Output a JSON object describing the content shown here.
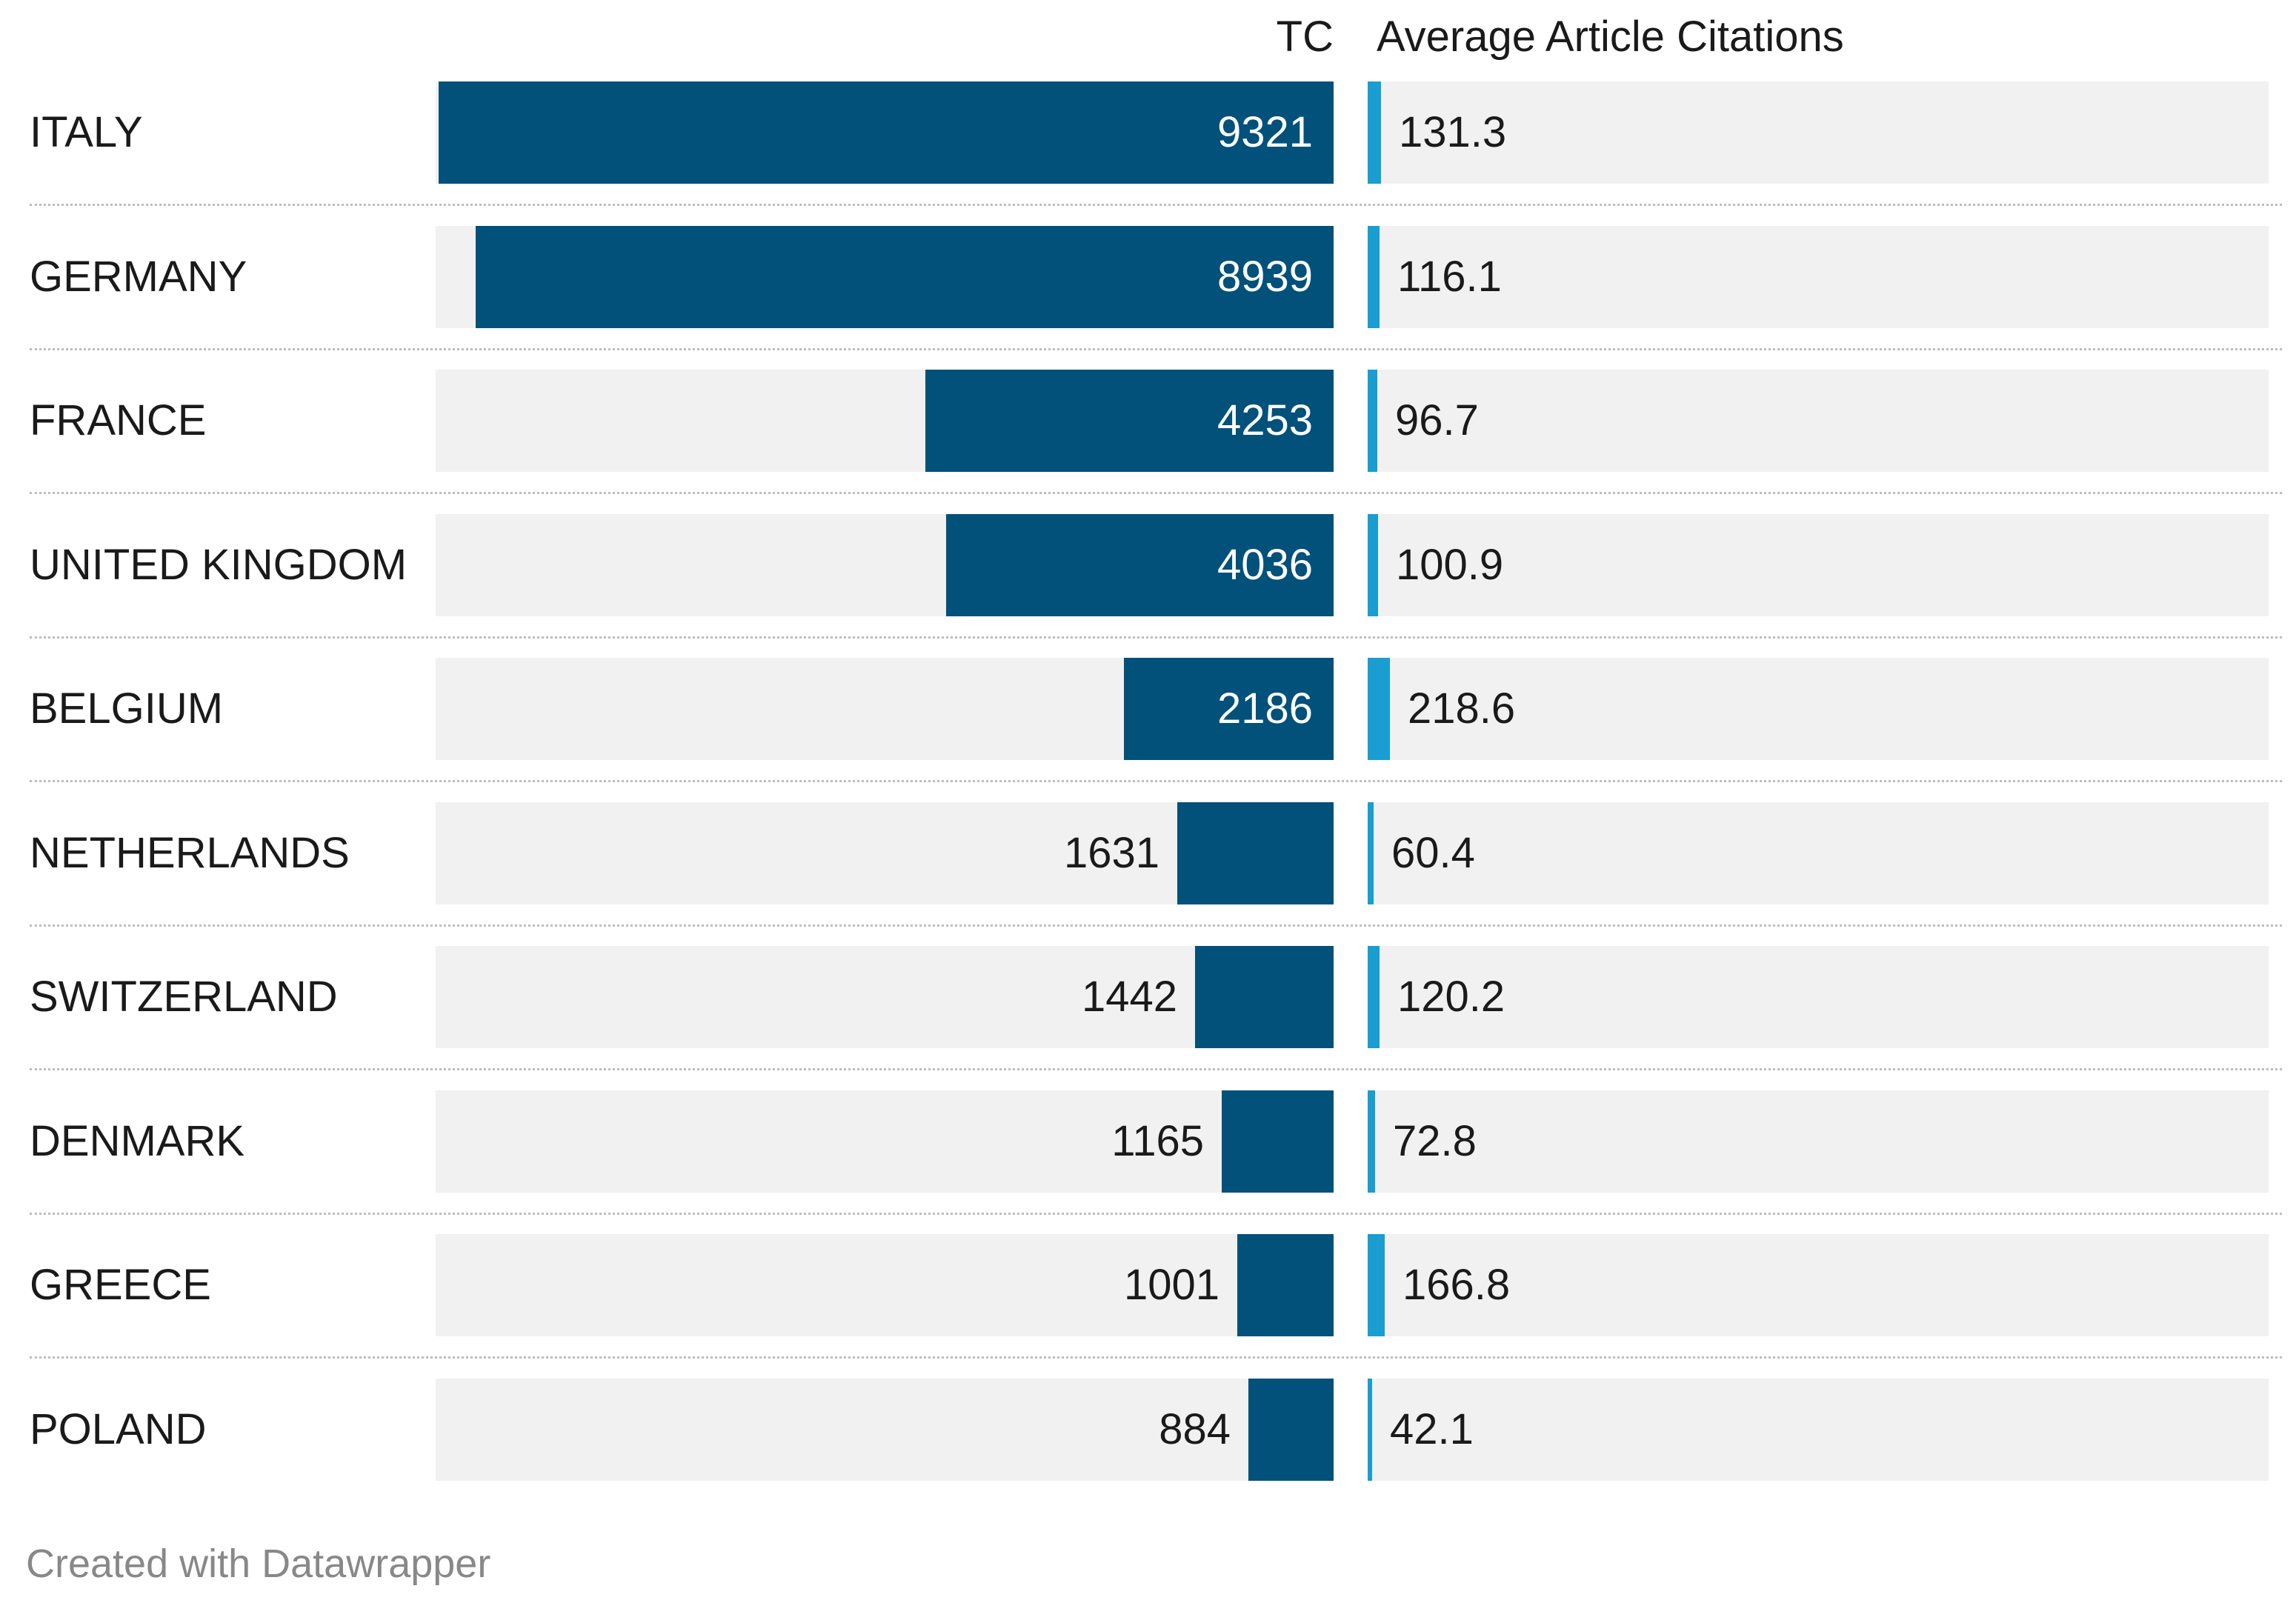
{
  "chart_data": {
    "type": "bar",
    "title": "",
    "columns": [
      "TC",
      "Average Article Citations"
    ],
    "categories": [
      "ITALY",
      "GERMANY",
      "FRANCE",
      "UNITED KINGDOM",
      "BELGIUM",
      "NETHERLANDS",
      "SWITZERLAND",
      "DENMARK",
      "GREECE",
      "POLAND"
    ],
    "series": [
      {
        "name": "TC",
        "values": [
          9321,
          8939,
          4253,
          4036,
          2186,
          1631,
          1442,
          1165,
          1001,
          884
        ],
        "color": "#02517a"
      },
      {
        "name": "Average Article Citations",
        "values": [
          131.3,
          116.1,
          96.7,
          100.9,
          218.6,
          60.4,
          120.2,
          72.8,
          166.8,
          42.1
        ],
        "color": "#1a9dd1"
      }
    ],
    "tc_max": 9321,
    "avg_max": 218.6
  },
  "footer": {
    "credit": "Created with Datawrapper"
  },
  "colors": {
    "bar_background": "#f1f1f1",
    "label_inside": "#ffffff",
    "label_outside": "#1a1a1a"
  }
}
